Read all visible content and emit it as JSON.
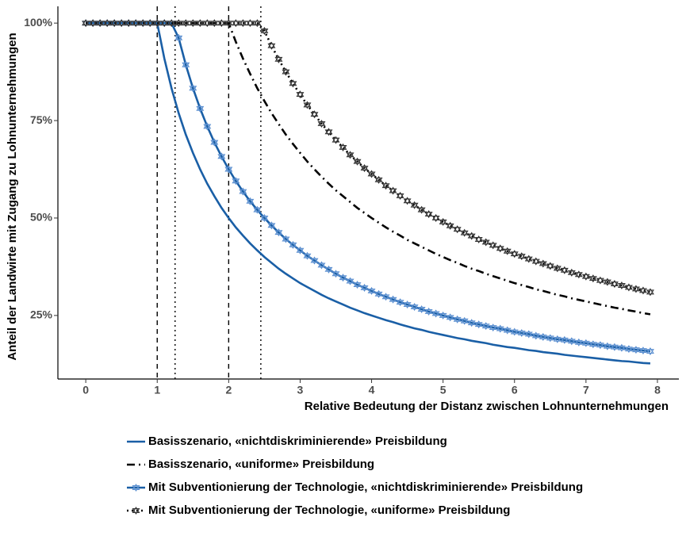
{
  "chart_data": {
    "type": "line",
    "x_label": "Relative Bedeutung der Distanz zwischen Lohnunternehmungen",
    "y_label": "Anteil der Landwirte mit Zugang zu Lohnunternehmungen",
    "xlim": [
      -0.39,
      8.3
    ],
    "ylim": [
      8.7,
      104.3
    ],
    "xticks": [
      0,
      1,
      2,
      3,
      4,
      5,
      6,
      7,
      8
    ],
    "yticks": [
      {
        "value": 25,
        "label": "25%"
      },
      {
        "value": 50,
        "label": "50%"
      },
      {
        "value": 75,
        "label": "75%"
      },
      {
        "value": 100,
        "label": "100%"
      }
    ],
    "reference_lines": [
      {
        "x": 1,
        "style": "dashed"
      },
      {
        "x": 1.25,
        "style": "dotted"
      },
      {
        "x": 2,
        "style": "dashed"
      },
      {
        "x": 2.45,
        "style": "dotted"
      }
    ],
    "x": [
      0,
      0.1,
      0.2,
      0.3,
      0.4,
      0.5,
      0.6,
      0.7,
      0.8,
      0.9,
      1,
      1.1,
      1.2,
      1.3,
      1.4,
      1.5,
      1.6,
      1.7,
      1.8,
      1.9,
      2,
      2.1,
      2.2,
      2.3,
      2.4,
      2.5,
      2.6,
      2.7,
      2.8,
      2.9,
      3,
      3.1,
      3.2,
      3.3,
      3.4,
      3.5,
      3.6,
      3.7,
      3.8,
      3.9,
      4,
      4.1,
      4.2,
      4.3,
      4.4,
      4.5,
      4.6,
      4.7,
      4.8,
      4.9,
      5,
      5.1,
      5.2,
      5.3,
      5.4,
      5.5,
      5.6,
      5.7,
      5.8,
      5.9,
      6,
      6.1,
      6.2,
      6.3,
      6.4,
      6.5,
      6.6,
      6.7,
      6.8,
      6.9,
      7,
      7.1,
      7.2,
      7.3,
      7.4,
      7.5,
      7.6,
      7.7,
      7.8,
      7.9
    ],
    "series": [
      {
        "name": "Basisszenario, «nichtdiskriminierende» Preisbildung",
        "color": "#1a5fa6",
        "dash": "solid",
        "marker": false,
        "values": [
          100,
          100,
          100,
          100,
          100,
          100,
          100,
          100,
          100,
          100,
          100,
          90.9,
          83.3,
          76.9,
          71.4,
          66.7,
          62.5,
          58.8,
          55.6,
          52.6,
          50,
          47.6,
          45.5,
          43.5,
          41.7,
          40,
          38.5,
          37,
          35.7,
          34.5,
          33.3,
          32.3,
          31.3,
          30.3,
          29.4,
          28.6,
          27.8,
          27,
          26.3,
          25.6,
          25,
          24.4,
          23.8,
          23.3,
          22.7,
          22.2,
          21.7,
          21.3,
          20.8,
          20.4,
          20,
          19.6,
          19.2,
          18.9,
          18.5,
          18.2,
          17.9,
          17.5,
          17.2,
          16.9,
          16.7,
          16.4,
          16.1,
          15.9,
          15.6,
          15.4,
          15.2,
          14.9,
          14.7,
          14.5,
          14.3,
          14.1,
          13.9,
          13.7,
          13.5,
          13.3,
          13.2,
          13,
          12.8,
          12.7
        ]
      },
      {
        "name": "Basisszenario, «uniforme» Preisbildung",
        "color": "#000000",
        "dash": "dashdot",
        "marker": false,
        "values": [
          100,
          100,
          100,
          100,
          100,
          100,
          100,
          100,
          100,
          100,
          100,
          100,
          100,
          100,
          100,
          100,
          100,
          100,
          100,
          100,
          100,
          95.2,
          90.9,
          87,
          83.3,
          80,
          76.9,
          74.1,
          71.4,
          69,
          66.7,
          64.5,
          62.5,
          60.6,
          58.8,
          57.1,
          55.6,
          54.1,
          52.6,
          51.3,
          50,
          48.8,
          47.6,
          46.5,
          45.5,
          44.4,
          43.5,
          42.6,
          41.7,
          40.8,
          40,
          39.2,
          38.5,
          37.7,
          37,
          36.4,
          35.7,
          35.1,
          34.5,
          33.9,
          33.3,
          32.8,
          32.3,
          31.7,
          31.3,
          30.8,
          30.3,
          29.9,
          29.4,
          29,
          28.6,
          28.2,
          27.8,
          27.4,
          27,
          26.7,
          26.3,
          26,
          25.6,
          25.3
        ]
      },
      {
        "name": "Mit Subventionierung der Technologie, «nichtdiskriminierende» Preisbildung",
        "color": "#1a5fa6",
        "dash": "solid",
        "marker": true,
        "values": [
          100,
          100,
          100,
          100,
          100,
          100,
          100,
          100,
          100,
          100,
          100,
          100,
          100,
          96.2,
          89.3,
          83.3,
          78.1,
          73.5,
          69.4,
          65.8,
          62.5,
          59.5,
          56.8,
          54.3,
          52.1,
          50,
          48.1,
          46.3,
          44.6,
          43.1,
          41.7,
          40.3,
          39.1,
          37.9,
          36.8,
          35.7,
          34.7,
          33.8,
          32.9,
          32.1,
          31.3,
          30.5,
          29.8,
          29.1,
          28.4,
          27.8,
          27.2,
          26.6,
          26,
          25.5,
          25,
          24.5,
          24,
          23.6,
          23.1,
          22.7,
          22.3,
          21.9,
          21.6,
          21.2,
          20.8,
          20.5,
          20.2,
          19.8,
          19.5,
          19.2,
          18.9,
          18.7,
          18.4,
          18.1,
          17.9,
          17.6,
          17.4,
          17.1,
          16.9,
          16.7,
          16.4,
          16.2,
          16,
          15.8
        ]
      },
      {
        "name": "Mit Subventionierung der Technologie, «uniforme» Preisbildung",
        "color": "#000000",
        "dash": "dotted",
        "marker": true,
        "values": [
          100,
          100,
          100,
          100,
          100,
          100,
          100,
          100,
          100,
          100,
          100,
          100,
          100,
          100,
          100,
          100,
          100,
          100,
          100,
          100,
          100,
          100,
          100,
          100,
          100,
          98,
          94.2,
          90.7,
          87.5,
          84.5,
          81.7,
          79,
          76.6,
          74.2,
          72.1,
          70,
          68.1,
          66.2,
          64.5,
          62.8,
          61.3,
          59.8,
          58.3,
          57,
          55.7,
          54.4,
          53.3,
          52.1,
          51,
          50,
          49,
          48,
          47.1,
          46.2,
          45.4,
          44.5,
          43.8,
          43,
          42.2,
          41.5,
          40.8,
          40.2,
          39.5,
          38.9,
          38.3,
          37.7,
          37.1,
          36.6,
          36,
          35.5,
          35,
          34.5,
          34,
          33.6,
          33.1,
          32.7,
          32.2,
          31.8,
          31.4,
          31
        ]
      }
    ]
  }
}
